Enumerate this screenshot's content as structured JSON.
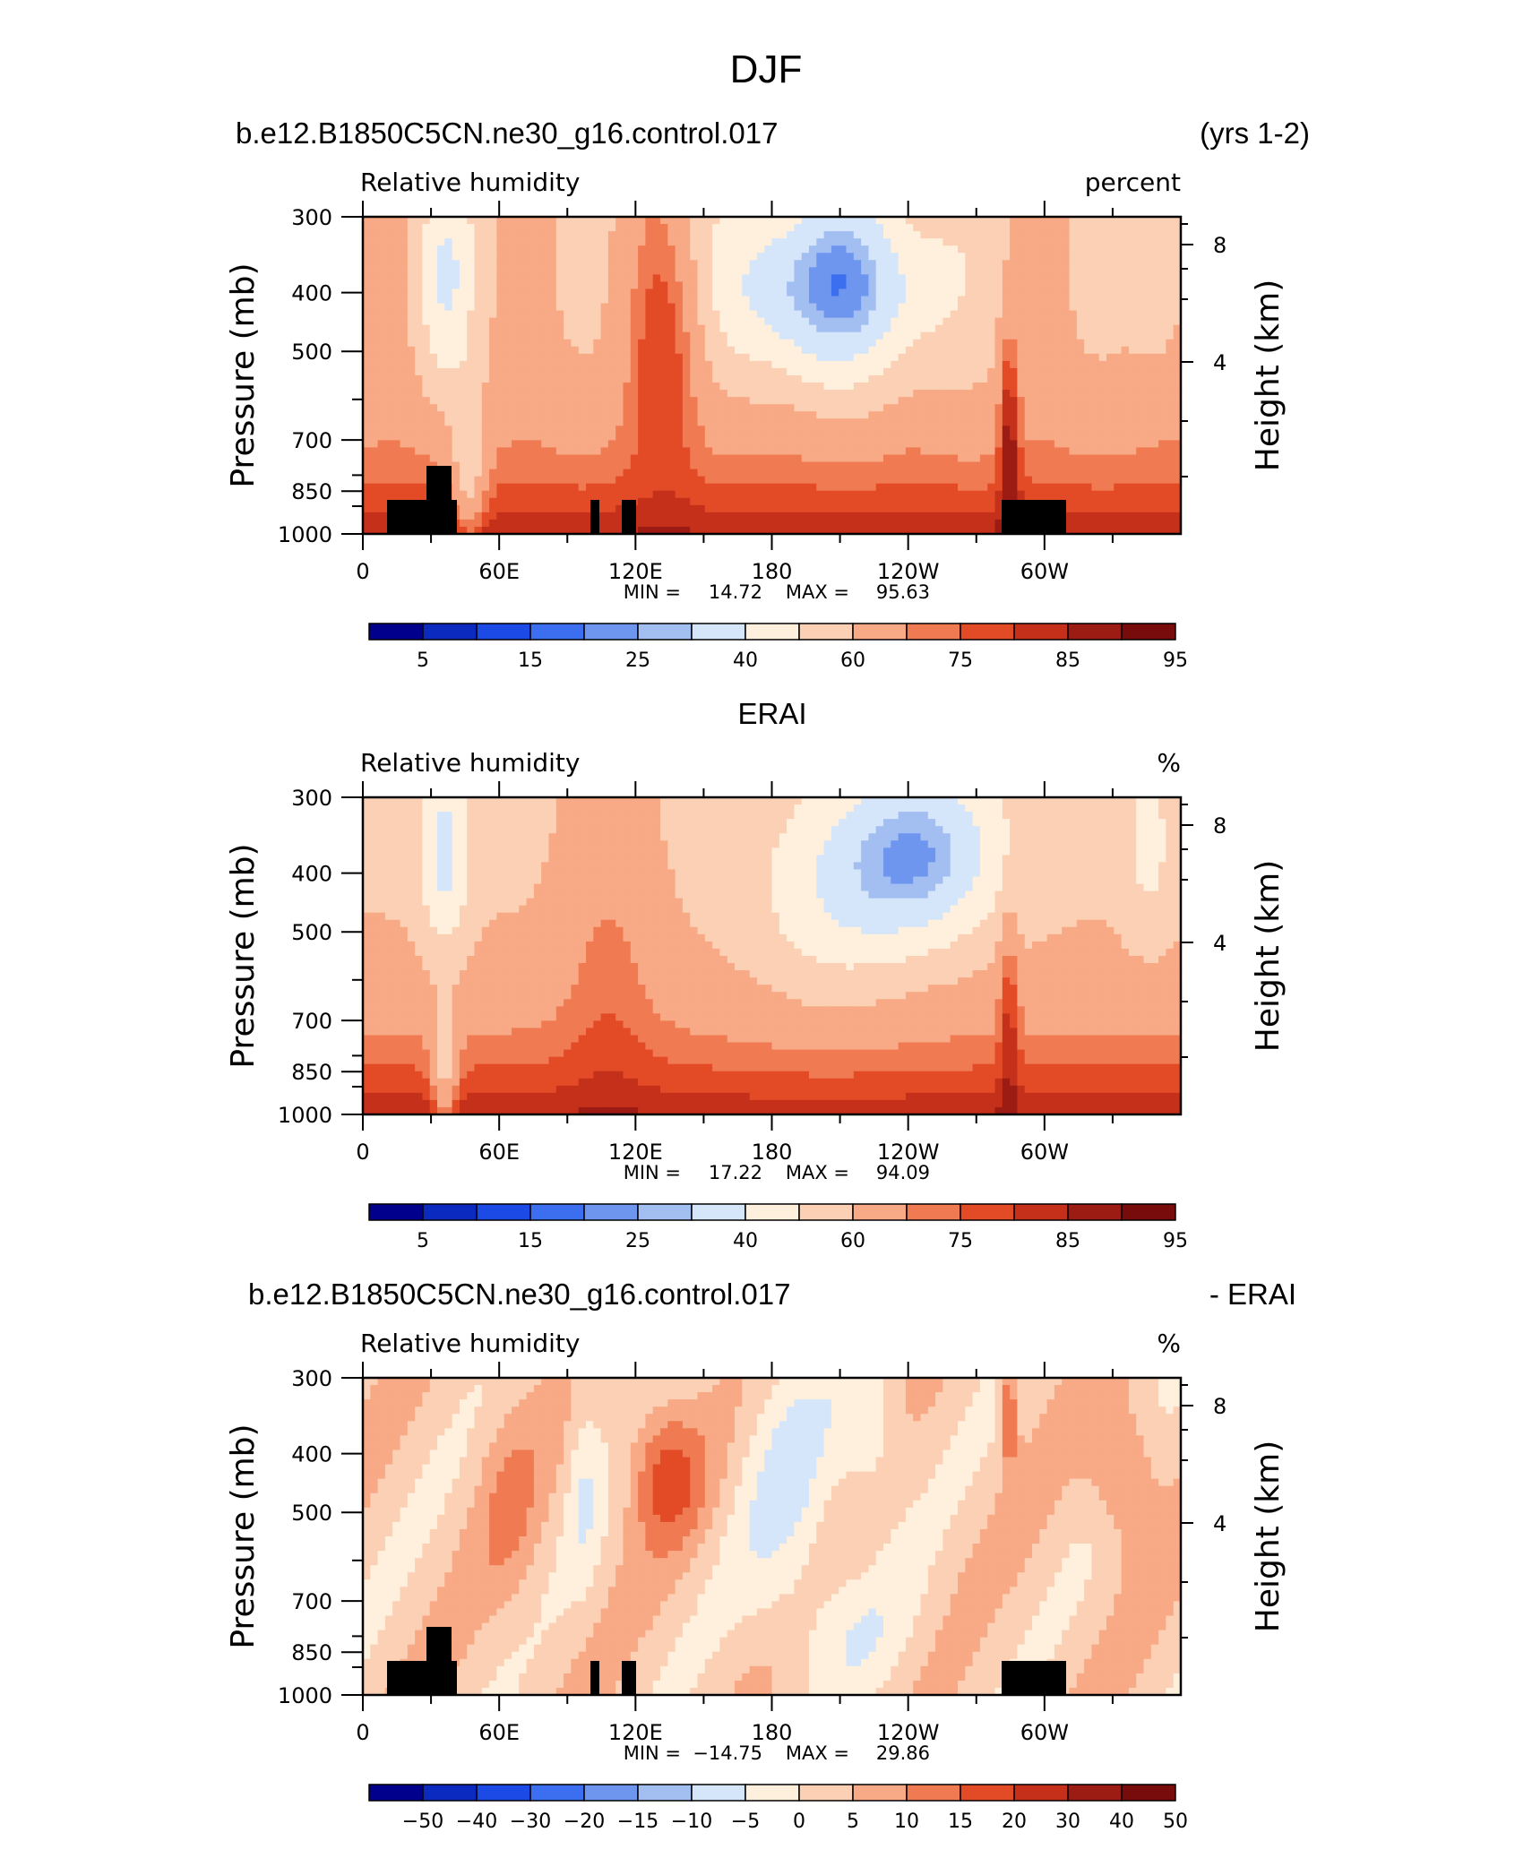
{
  "figure_title": "DJF",
  "colors": {
    "abs_levels": [
      "#00008c",
      "#0b2bc0",
      "#1c4ae6",
      "#3b6ff0",
      "#6e96ee",
      "#a3bff2",
      "#d5e6fb",
      "#fef0dc",
      "#fbd0b4",
      "#f8a985",
      "#f07a52",
      "#e34b27",
      "#c4301a",
      "#9c1b12",
      "#780b0b"
    ],
    "diff_levels": [
      "#00008c",
      "#0b2bc0",
      "#1c4ae6",
      "#3b6ff0",
      "#6e96ee",
      "#a3bff2",
      "#d5e6fb",
      "#fef0dc",
      "#fbd0b4",
      "#f8a985",
      "#f07a52",
      "#e34b27",
      "#c4301a",
      "#9c1b12",
      "#780b0b"
    ],
    "topography": "#000000"
  },
  "chart_data": [
    {
      "type": "heatmap",
      "title_left": "b.e12.B1850C5CN.ne30_g16.control.017",
      "title_right": "(yrs 1-2)",
      "subtitle_left": "Relative humidity",
      "subtitle_right": "percent",
      "ylabel": "Pressure (mb)",
      "ylabel_right": "Height (km)",
      "y_ticks": [
        "300",
        "400",
        "500",
        "700",
        "850",
        "1000"
      ],
      "y_right_ticks": [
        "8",
        "4"
      ],
      "x_ticks": [
        "0",
        "60E",
        "120E",
        "180",
        "120W",
        "60W"
      ],
      "min_label": "MIN =",
      "min_value": "14.72",
      "max_label": "MAX =",
      "max_value": "95.63",
      "colorbar_labels": [
        "5",
        "15",
        "25",
        "40",
        "60",
        "75",
        "85",
        "95"
      ],
      "field": "model"
    },
    {
      "type": "heatmap",
      "title_center": "ERAI",
      "subtitle_left": "Relative humidity",
      "subtitle_right": "%",
      "ylabel": "Pressure (mb)",
      "ylabel_right": "Height (km)",
      "y_ticks": [
        "300",
        "400",
        "500",
        "700",
        "850",
        "1000"
      ],
      "y_right_ticks": [
        "8",
        "4"
      ],
      "x_ticks": [
        "0",
        "60E",
        "120E",
        "180",
        "120W",
        "60W"
      ],
      "min_label": "MIN =",
      "min_value": "17.22",
      "max_label": "MAX =",
      "max_value": "94.09",
      "colorbar_labels": [
        "5",
        "15",
        "25",
        "40",
        "60",
        "75",
        "85",
        "95"
      ],
      "field": "obs"
    },
    {
      "type": "heatmap",
      "title_left": "b.e12.B1850C5CN.ne30_g16.control.017",
      "title_right": "- ERAI",
      "subtitle_left": "Relative humidity",
      "subtitle_right": "%",
      "ylabel": "Pressure (mb)",
      "ylabel_right": "Height (km)",
      "y_ticks": [
        "300",
        "400",
        "500",
        "700",
        "850",
        "1000"
      ],
      "y_right_ticks": [
        "8",
        "4"
      ],
      "x_ticks": [
        "0",
        "60E",
        "120E",
        "180",
        "120W",
        "60W"
      ],
      "min_label": "MIN =",
      "min_value": "−14.75",
      "max_label": "MAX =",
      "max_value": "29.86",
      "colorbar_labels": [
        "−50",
        "−40",
        "−30",
        "−20",
        "−15",
        "−10",
        "−5",
        "0",
        "5",
        "10",
        "15",
        "20",
        "30",
        "40",
        "50"
      ],
      "field": "diff"
    }
  ]
}
